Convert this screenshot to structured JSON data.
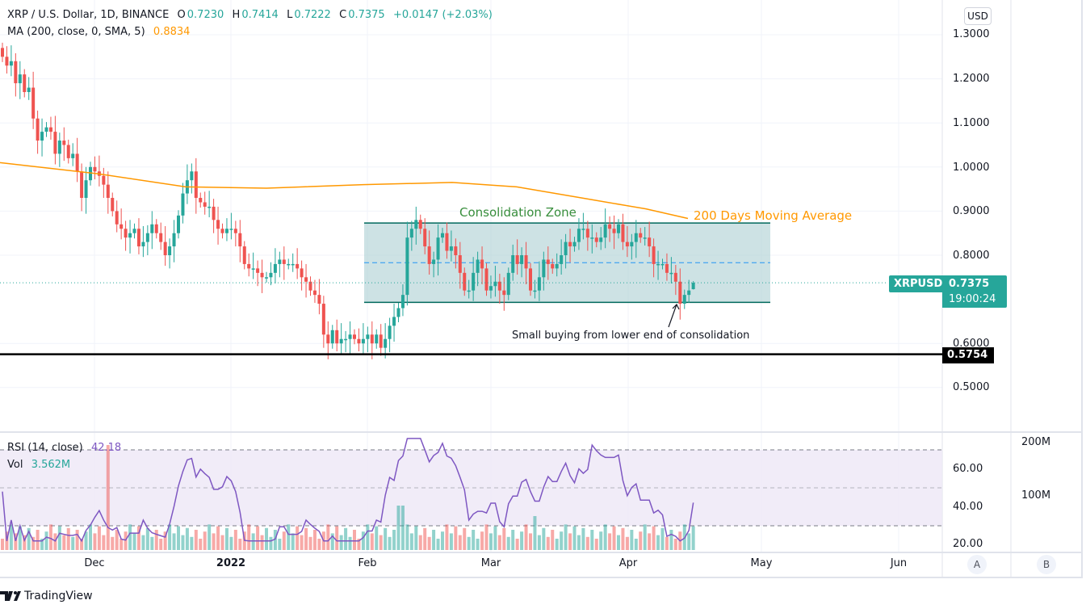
{
  "header": {
    "symbol_title": "XRP / U.S. Dollar, 1D, BINANCE",
    "open_label": "O",
    "open": "0.7230",
    "high_label": "H",
    "high": "0.7414",
    "low_label": "L",
    "low": "0.7222",
    "close_label": "C",
    "close": "0.7375",
    "change": "+0.0147 (+2.03%)",
    "ma_label": "MA (200, close, 0, SMA, 5)",
    "ma_value": "0.8834"
  },
  "price_axis": {
    "currency_button": "USD",
    "ticks": [
      "1.3000",
      "1.2000",
      "1.1000",
      "1.0000",
      "0.9000",
      "0.8000",
      "0.6000",
      "0.5000"
    ],
    "last_symbol": "XRPUSD",
    "last_price": "0.7375",
    "countdown": "19:00:24",
    "level_price": "0.5754"
  },
  "time_axis": {
    "ticks": [
      {
        "label": "Dec",
        "bold": false
      },
      {
        "label": "2022",
        "bold": true
      },
      {
        "label": "Feb",
        "bold": false
      },
      {
        "label": "Mar",
        "bold": false
      },
      {
        "label": "Apr",
        "bold": false
      },
      {
        "label": "May",
        "bold": false
      },
      {
        "label": "Jun",
        "bold": false
      }
    ]
  },
  "pane_buttons": {
    "a": "A",
    "b": "B"
  },
  "rsi_pane": {
    "rsi_label": "RSI (14, close)",
    "rsi_value": "42.18",
    "vol_label": "Vol",
    "vol_value": "3.562M",
    "rsi_ticks": [
      "60.00",
      "40.00",
      "20.00"
    ],
    "vol_ticks": [
      "200M",
      "100M"
    ]
  },
  "annotations": {
    "zone_label": "Consolidation Zone",
    "ma_label": "200 Days Moving Average",
    "buy_note": "Small buying from lower end of consolidation"
  },
  "branding": {
    "logo_text": "TradingView"
  },
  "colors": {
    "up": "#26a69a",
    "down": "#ef5350",
    "ma": "#ff9800",
    "zone_fill": "#b2d3d6",
    "zone_border": "#00695c",
    "zone_mid": "#2196f3",
    "rsi_line": "#7e57c2",
    "rsi_band": "#ede7f6",
    "level_line": "#000000"
  },
  "chart_data": {
    "type": "candlestick",
    "title": "XRP / U.S. Dollar, 1D, BINANCE",
    "ylabel": "USD",
    "ylim": [
      0.42,
      1.34
    ],
    "x_ticks": [
      "Dec",
      "2022",
      "Feb",
      "Mar",
      "Apr",
      "May",
      "Jun"
    ],
    "y_ticks": [
      1.3,
      1.2,
      1.1,
      1.0,
      0.9,
      0.8,
      0.6,
      0.5
    ],
    "grid": true,
    "last": {
      "open": 0.723,
      "high": 0.7414,
      "low": 0.7222,
      "close": 0.7375,
      "change": 0.0147,
      "change_pct": 2.03
    },
    "closes_approx": [
      1.25,
      1.23,
      1.24,
      1.19,
      1.21,
      1.17,
      1.18,
      1.11,
      1.06,
      1.08,
      1.09,
      1.08,
      1.03,
      1.06,
      1.05,
      1.02,
      1.03,
      0.99,
      0.93,
      0.97,
      1.0,
      0.99,
      0.98,
      0.96,
      0.93,
      0.9,
      0.87,
      0.86,
      0.84,
      0.85,
      0.86,
      0.82,
      0.83,
      0.85,
      0.87,
      0.85,
      0.83,
      0.8,
      0.82,
      0.85,
      0.89,
      0.94,
      0.97,
      0.99,
      0.93,
      0.92,
      0.91,
      0.91,
      0.88,
      0.86,
      0.85,
      0.86,
      0.86,
      0.85,
      0.82,
      0.78,
      0.77,
      0.77,
      0.76,
      0.75,
      0.75,
      0.76,
      0.78,
      0.79,
      0.78,
      0.78,
      0.78,
      0.77,
      0.75,
      0.74,
      0.72,
      0.71,
      0.69,
      0.62,
      0.6,
      0.63,
      0.6,
      0.61,
      0.61,
      0.62,
      0.61,
      0.6,
      0.61,
      0.62,
      0.6,
      0.62,
      0.59,
      0.61,
      0.64,
      0.66,
      0.68,
      0.71,
      0.84,
      0.86,
      0.88,
      0.86,
      0.82,
      0.78,
      0.79,
      0.84,
      0.85,
      0.81,
      0.82,
      0.8,
      0.76,
      0.72,
      0.72,
      0.76,
      0.79,
      0.77,
      0.72,
      0.73,
      0.74,
      0.72,
      0.71,
      0.76,
      0.8,
      0.78,
      0.8,
      0.77,
      0.72,
      0.72,
      0.75,
      0.79,
      0.78,
      0.77,
      0.78,
      0.8,
      0.83,
      0.82,
      0.83,
      0.86,
      0.86,
      0.84,
      0.84,
      0.83,
      0.84,
      0.87,
      0.86,
      0.85,
      0.87,
      0.83,
      0.82,
      0.83,
      0.85,
      0.84,
      0.84,
      0.82,
      0.78,
      0.78,
      0.78,
      0.76,
      0.76,
      0.74,
      0.69,
      0.71,
      0.72,
      0.7375
    ],
    "ma200_approx": {
      "start": 1.01,
      "mid": 0.95,
      "peak": 0.965,
      "end": 0.8834
    },
    "support_level": 0.5754,
    "consolidation_zone": {
      "upper": 0.873,
      "lower": 0.693,
      "mid": 0.783,
      "x_start": "Feb",
      "x_end": "Apr"
    },
    "rsi": {
      "value": 42.18,
      "ylim": [
        17,
        78
      ],
      "bands": [
        70,
        50,
        30
      ]
    },
    "volume": {
      "last": "3.562M",
      "ticks": [
        "200M",
        "100M"
      ]
    }
  }
}
